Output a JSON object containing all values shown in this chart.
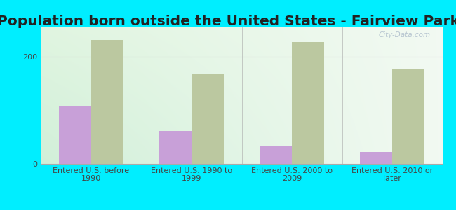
{
  "title": "Population born outside the United States - Fairview Park",
  "categories": [
    "Entered U.S. before\n1990",
    "Entered U.S. 1990 to\n1999",
    "Entered U.S. 2000 to\n2009",
    "Entered U.S. 2010 or\nlater"
  ],
  "native_values": [
    108,
    62,
    33,
    22
  ],
  "foreign_values": [
    232,
    168,
    228,
    178
  ],
  "native_color": "#c8a0d8",
  "foreign_color": "#bbc8a0",
  "background_outer": "#00eeff",
  "background_plot_topleft": "#d8eed8",
  "background_plot_topright": "#e8f4ee",
  "background_plot_bottom": "#f5fff5",
  "ylim": [
    0,
    255
  ],
  "yticks": [
    0,
    200
  ],
  "bar_width": 0.32,
  "title_fontsize": 14.5,
  "tick_fontsize": 8,
  "legend_fontsize": 9.5,
  "watermark_text": "City-Data.com"
}
